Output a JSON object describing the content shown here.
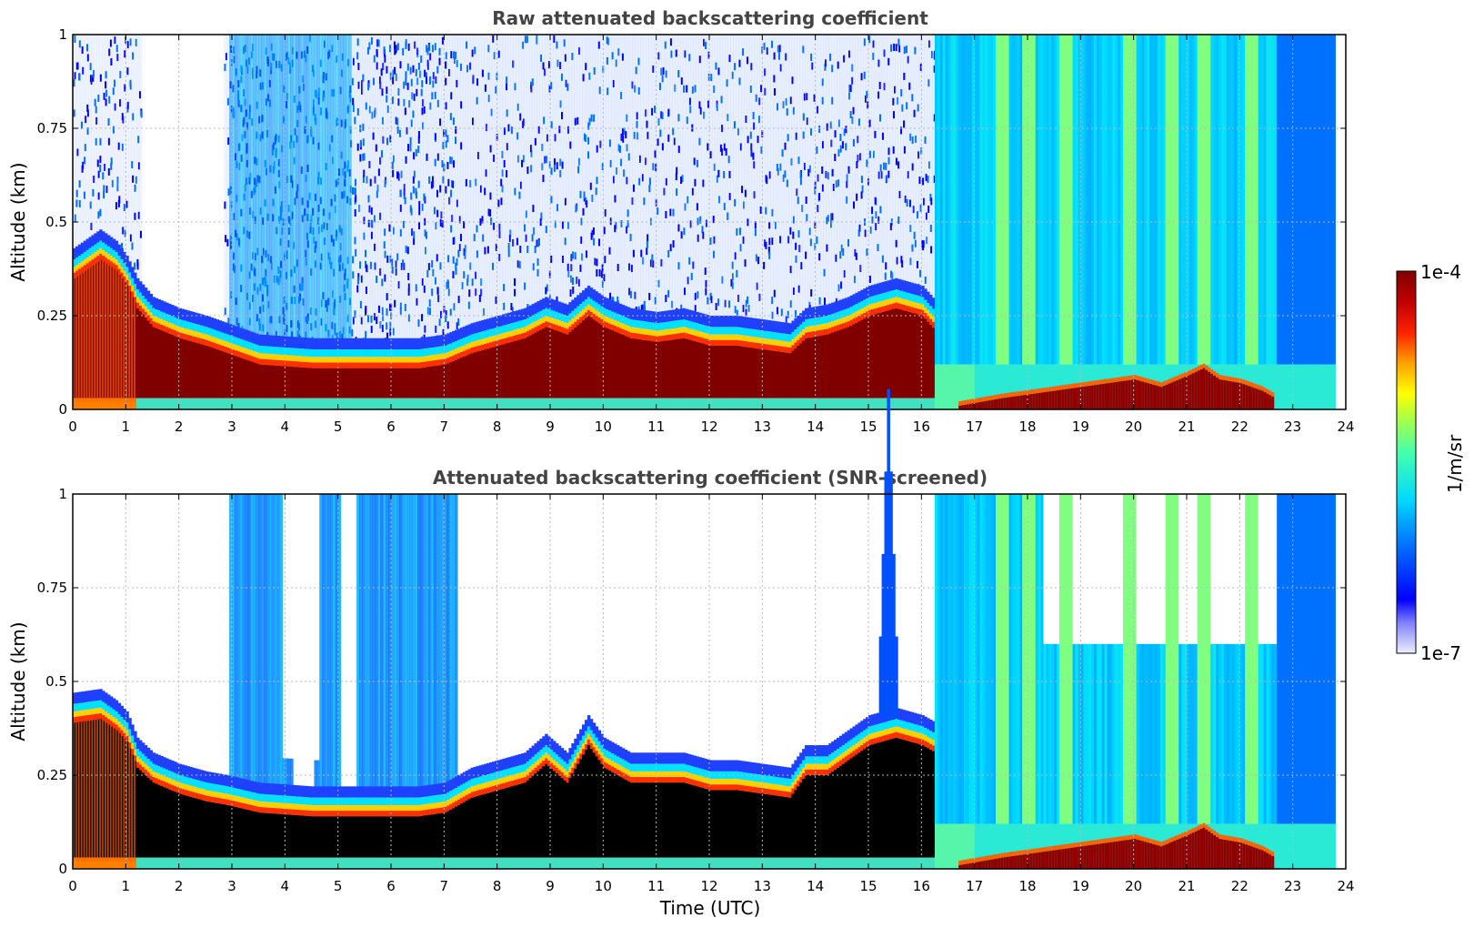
{
  "chart_data": [
    {
      "type": "heatmap",
      "title": "Raw attenuated backscattering coefficient",
      "xlabel": "",
      "ylabel": "Altitude (km)",
      "xlim": [
        0,
        24
      ],
      "ylim": [
        0,
        1
      ],
      "x_ticks": [
        "0",
        "1",
        "2",
        "3",
        "4",
        "5",
        "6",
        "7",
        "8",
        "9",
        "10",
        "11",
        "12",
        "13",
        "14",
        "15",
        "16",
        "17",
        "18",
        "19",
        "20",
        "21",
        "22",
        "23",
        "24"
      ],
      "y_ticks": [
        "0",
        "0.25",
        "0.5",
        "0.75",
        "1"
      ],
      "grid": true,
      "data_end_time": 23.8,
      "aerosol_layer_top_km": [
        [
          0,
          0.4
        ],
        [
          0.5,
          0.45
        ],
        [
          0.8,
          0.42
        ],
        [
          1.0,
          0.38
        ],
        [
          1.2,
          0.32
        ],
        [
          1.5,
          0.27
        ],
        [
          2.0,
          0.24
        ],
        [
          2.5,
          0.22
        ],
        [
          2.9,
          0.2
        ],
        [
          3.5,
          0.17
        ],
        [
          4.5,
          0.16
        ],
        [
          5.5,
          0.16
        ],
        [
          6.5,
          0.16
        ],
        [
          7.0,
          0.17
        ],
        [
          7.5,
          0.2
        ],
        [
          8.0,
          0.22
        ],
        [
          8.5,
          0.24
        ],
        [
          8.9,
          0.27
        ],
        [
          9.3,
          0.25
        ],
        [
          9.7,
          0.3
        ],
        [
          10.0,
          0.27
        ],
        [
          10.5,
          0.24
        ],
        [
          11.0,
          0.23
        ],
        [
          11.5,
          0.24
        ],
        [
          12.0,
          0.22
        ],
        [
          12.5,
          0.22
        ],
        [
          13.0,
          0.21
        ],
        [
          13.5,
          0.2
        ],
        [
          13.8,
          0.24
        ],
        [
          14.2,
          0.25
        ],
        [
          14.6,
          0.27
        ],
        [
          15.0,
          0.3
        ],
        [
          15.5,
          0.32
        ],
        [
          16.0,
          0.3
        ],
        [
          16.25,
          0.26
        ]
      ],
      "low_cloud_top_km": [
        [
          16.7,
          0.01
        ],
        [
          17.5,
          0.03
        ],
        [
          18.0,
          0.04
        ],
        [
          19.0,
          0.06
        ],
        [
          19.5,
          0.07
        ],
        [
          20.0,
          0.08
        ],
        [
          20.5,
          0.06
        ],
        [
          21.0,
          0.09
        ],
        [
          21.3,
          0.11
        ],
        [
          21.6,
          0.08
        ],
        [
          22.0,
          0.07
        ],
        [
          22.4,
          0.05
        ],
        [
          22.65,
          0.03
        ]
      ],
      "bright_columns_hours": [
        17.5,
        18.0,
        18.7,
        19.9,
        20.7,
        21.3,
        22.2
      ]
    },
    {
      "type": "heatmap",
      "title": "Attenuated backscattering coefficient (SNR-screened)",
      "xlabel": "Time (UTC)",
      "ylabel": "Altitude (km)",
      "xlim": [
        0,
        24
      ],
      "ylim": [
        0,
        1
      ],
      "x_ticks": [
        "0",
        "1",
        "2",
        "3",
        "4",
        "5",
        "6",
        "7",
        "8",
        "9",
        "10",
        "11",
        "12",
        "13",
        "14",
        "15",
        "16",
        "17",
        "18",
        "19",
        "20",
        "21",
        "22",
        "23",
        "24"
      ],
      "y_ticks": [
        "0",
        "0.25",
        "0.5",
        "0.75",
        "1"
      ],
      "grid": true,
      "data_end_time": 23.8,
      "aerosol_layer_top_km": [
        [
          0,
          0.44
        ],
        [
          0.5,
          0.45
        ],
        [
          0.8,
          0.42
        ],
        [
          1.0,
          0.39
        ],
        [
          1.2,
          0.32
        ],
        [
          1.5,
          0.28
        ],
        [
          2.0,
          0.25
        ],
        [
          2.5,
          0.23
        ],
        [
          2.9,
          0.22
        ],
        [
          3.5,
          0.2
        ],
        [
          4.5,
          0.19
        ],
        [
          5.5,
          0.19
        ],
        [
          6.5,
          0.19
        ],
        [
          7.0,
          0.2
        ],
        [
          7.5,
          0.24
        ],
        [
          8.0,
          0.26
        ],
        [
          8.5,
          0.28
        ],
        [
          8.9,
          0.33
        ],
        [
          9.3,
          0.28
        ],
        [
          9.7,
          0.38
        ],
        [
          10.0,
          0.32
        ],
        [
          10.5,
          0.28
        ],
        [
          11.0,
          0.28
        ],
        [
          11.5,
          0.28
        ],
        [
          12.0,
          0.26
        ],
        [
          12.5,
          0.26
        ],
        [
          13.0,
          0.25
        ],
        [
          13.5,
          0.24
        ],
        [
          13.8,
          0.3
        ],
        [
          14.2,
          0.3
        ],
        [
          14.6,
          0.34
        ],
        [
          15.0,
          0.38
        ],
        [
          15.5,
          0.4
        ],
        [
          16.0,
          0.38
        ],
        [
          16.25,
          0.36
        ]
      ],
      "low_cloud_top_km": [
        [
          16.7,
          0.01
        ],
        [
          17.5,
          0.03
        ],
        [
          18.0,
          0.04
        ],
        [
          19.0,
          0.06
        ],
        [
          19.5,
          0.07
        ],
        [
          20.0,
          0.08
        ],
        [
          20.5,
          0.06
        ],
        [
          21.0,
          0.09
        ],
        [
          21.3,
          0.11
        ],
        [
          21.6,
          0.08
        ],
        [
          22.0,
          0.07
        ],
        [
          22.4,
          0.05
        ],
        [
          22.65,
          0.03
        ]
      ],
      "plume": {
        "time_hours": 15.35,
        "top_km": 0.88
      },
      "bright_columns_hours": [
        17.5,
        18.0,
        18.7,
        19.9,
        20.7,
        21.3,
        22.2
      ]
    }
  ],
  "colorbar": {
    "label": "1/m/sr",
    "max_label": "1e-4",
    "min_label": "1e-7",
    "scale": "log",
    "colormap": [
      "#e8e8ff",
      "#0000ff",
      "#0080ff",
      "#00e0ff",
      "#80ff80",
      "#ffff00",
      "#ff8000",
      "#ff0000",
      "#800000"
    ]
  }
}
